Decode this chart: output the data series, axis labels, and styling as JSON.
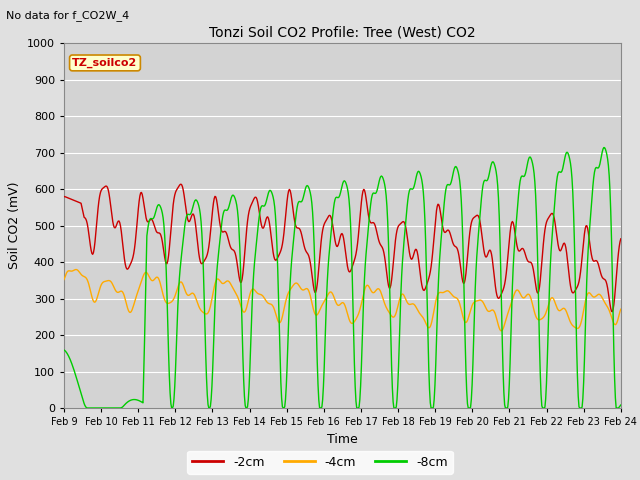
{
  "title": "Tonzi Soil CO2 Profile: Tree (West) CO2",
  "subtitle": "No data for f_CO2W_4",
  "xlabel": "Time",
  "ylabel": "Soil CO2 (mV)",
  "legend_label": "TZ_soilco2",
  "ylim": [
    0,
    1000
  ],
  "yticks": [
    0,
    100,
    200,
    300,
    400,
    500,
    600,
    700,
    800,
    900,
    1000
  ],
  "series_labels": [
    "-2cm",
    "-4cm",
    "-8cm"
  ],
  "series_colors": [
    "#cc0000",
    "#ffaa00",
    "#00cc00"
  ],
  "bg_color": "#e0e0e0",
  "plot_bg_color": "#d3d3d3",
  "grid_color": "#ffffff",
  "x_start": 9.0,
  "x_end": 24.0,
  "xtick_labels": [
    "Feb 9",
    "Feb 10",
    "Feb 11",
    "Feb 12",
    "Feb 13",
    "Feb 14",
    "Feb 15",
    "Feb 16",
    "Feb 17",
    "Feb 18",
    "Feb 19",
    "Feb 20",
    "Feb 21",
    "Feb 22",
    "Feb 23",
    "Feb 24"
  ],
  "xtick_positions": [
    9,
    10,
    11,
    12,
    13,
    14,
    15,
    16,
    17,
    18,
    19,
    20,
    21,
    22,
    23,
    24
  ]
}
